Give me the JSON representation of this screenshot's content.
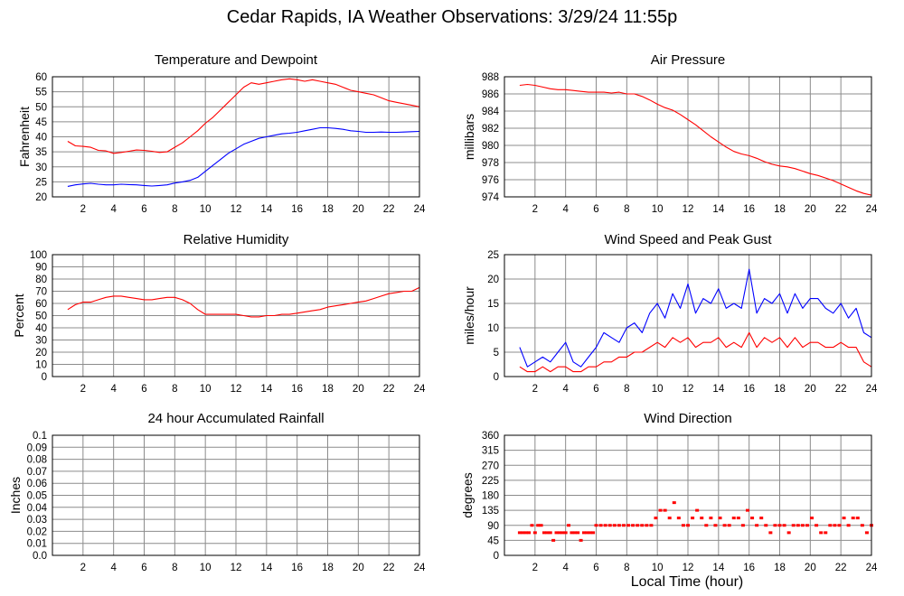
{
  "title": "Cedar Rapids, IA Weather Observations: 3/29/24 11:55p",
  "x_axis_label": "Local Time (hour)",
  "x_ticks": [
    "2",
    "4",
    "6",
    "8",
    "10",
    "12",
    "14",
    "16",
    "18",
    "20",
    "22",
    "24"
  ],
  "colors": {
    "red": "#ff0000",
    "blue": "#0000ff",
    "grid": "#8c8c8c",
    "frame": "#000000"
  },
  "chart_data": [
    {
      "id": "temp",
      "type": "line",
      "title": "Temperature and Dewpoint",
      "ylabel": "Fahrenheit",
      "xlim": [
        0,
        24
      ],
      "ylim": [
        20,
        60
      ],
      "y_ticks": [
        "20",
        "25",
        "30",
        "35",
        "40",
        "45",
        "50",
        "55",
        "60"
      ],
      "series": [
        {
          "color": "#ff0000",
          "x": [
            1.0,
            1.5,
            2.0,
            2.5,
            3.0,
            3.5,
            4.0,
            4.5,
            5.0,
            5.5,
            6.0,
            6.5,
            7.0,
            7.5,
            8.0,
            8.5,
            9.0,
            9.5,
            10.0,
            10.5,
            11.0,
            11.5,
            12.0,
            12.5,
            13.0,
            13.5,
            14.0,
            14.5,
            15.0,
            15.5,
            16.0,
            16.5,
            17.0,
            17.5,
            18.0,
            18.5,
            19.0,
            19.5,
            20.0,
            20.5,
            21.0,
            21.5,
            22.0,
            22.5,
            23.0,
            23.5,
            24.0
          ],
          "y": [
            38.5,
            37.0,
            36.8,
            36.5,
            35.5,
            35.3,
            34.5,
            34.8,
            35.2,
            35.6,
            35.5,
            35.2,
            34.8,
            35.0,
            36.5,
            38.0,
            40.0,
            42.0,
            44.5,
            46.5,
            49.0,
            51.5,
            54.0,
            56.5,
            58.0,
            57.5,
            58.0,
            58.5,
            59.0,
            59.3,
            59.0,
            58.5,
            59.0,
            58.5,
            58.0,
            57.5,
            56.5,
            55.5,
            55.0,
            54.5,
            54.0,
            53.0,
            52.0,
            51.5,
            51.0,
            50.5,
            50.0
          ]
        },
        {
          "color": "#0000ff",
          "x": [
            1.0,
            1.5,
            2.0,
            2.5,
            3.0,
            3.5,
            4.0,
            4.5,
            5.0,
            5.5,
            6.0,
            6.5,
            7.0,
            7.5,
            8.0,
            8.5,
            9.0,
            9.5,
            10.0,
            10.5,
            11.0,
            11.5,
            12.0,
            12.5,
            13.0,
            13.5,
            14.0,
            14.5,
            15.0,
            15.5,
            16.0,
            16.5,
            17.0,
            17.5,
            18.0,
            18.5,
            19.0,
            19.5,
            20.0,
            20.5,
            21.0,
            21.5,
            22.0,
            22.5,
            23.0,
            23.5,
            24.0
          ],
          "y": [
            23.5,
            24.0,
            24.3,
            24.5,
            24.2,
            24.0,
            24.0,
            24.2,
            24.1,
            24.0,
            23.8,
            23.6,
            23.8,
            24.0,
            24.6,
            25.0,
            25.5,
            26.5,
            28.5,
            30.5,
            32.5,
            34.5,
            36.0,
            37.5,
            38.5,
            39.5,
            40.0,
            40.5,
            41.0,
            41.2,
            41.5,
            42.0,
            42.5,
            43.0,
            43.0,
            42.8,
            42.5,
            42.0,
            41.8,
            41.5,
            41.5,
            41.6,
            41.5,
            41.5,
            41.6,
            41.7,
            41.8
          ]
        }
      ]
    },
    {
      "id": "pressure",
      "type": "line",
      "title": "Air Pressure",
      "ylabel": "millibars",
      "xlim": [
        0,
        24
      ],
      "ylim": [
        974,
        988
      ],
      "y_ticks": [
        "974",
        "976",
        "978",
        "980",
        "982",
        "984",
        "986",
        "988"
      ],
      "series": [
        {
          "color": "#ff0000",
          "x": [
            1.0,
            1.5,
            2.0,
            2.5,
            3.0,
            3.5,
            4.0,
            4.5,
            5.0,
            5.5,
            6.0,
            6.5,
            7.0,
            7.5,
            8.0,
            8.5,
            9.0,
            9.5,
            10.0,
            10.5,
            11.0,
            11.5,
            12.0,
            12.5,
            13.0,
            13.5,
            14.0,
            14.5,
            15.0,
            15.5,
            16.0,
            16.5,
            17.0,
            17.5,
            18.0,
            18.5,
            19.0,
            19.5,
            20.0,
            20.5,
            21.0,
            21.5,
            22.0,
            22.5,
            23.0,
            23.5,
            24.0
          ],
          "y": [
            987.0,
            987.1,
            987.0,
            986.8,
            986.6,
            986.5,
            986.5,
            986.4,
            986.3,
            986.2,
            986.2,
            986.2,
            986.1,
            986.2,
            986.0,
            986.0,
            985.7,
            985.3,
            984.8,
            984.4,
            984.1,
            983.6,
            983.0,
            982.4,
            981.7,
            981.0,
            980.4,
            979.8,
            979.3,
            979.0,
            978.8,
            978.5,
            978.1,
            977.8,
            977.6,
            977.5,
            977.3,
            977.0,
            976.7,
            976.5,
            976.2,
            975.9,
            975.5,
            975.1,
            974.7,
            974.4,
            974.2
          ]
        }
      ]
    },
    {
      "id": "humidity",
      "type": "line",
      "title": "Relative Humidity",
      "ylabel": "Percent",
      "xlim": [
        0,
        24
      ],
      "ylim": [
        0,
        100
      ],
      "y_ticks": [
        "0",
        "10",
        "20",
        "30",
        "40",
        "50",
        "60",
        "70",
        "80",
        "90",
        "100"
      ],
      "series": [
        {
          "color": "#ff0000",
          "x": [
            1.0,
            1.5,
            2.0,
            2.5,
            3.0,
            3.5,
            4.0,
            4.5,
            5.0,
            5.5,
            6.0,
            6.5,
            7.0,
            7.5,
            8.0,
            8.5,
            9.0,
            9.5,
            10.0,
            10.5,
            11.0,
            11.5,
            12.0,
            12.5,
            13.0,
            13.5,
            14.0,
            14.5,
            15.0,
            15.5,
            16.0,
            16.5,
            17.0,
            17.5,
            18.0,
            18.5,
            19.0,
            19.5,
            20.0,
            20.5,
            21.0,
            21.5,
            22.0,
            22.5,
            23.0,
            23.5,
            24.0
          ],
          "y": [
            55,
            59,
            61,
            61,
            63,
            65,
            66,
            66,
            65,
            64,
            63,
            63,
            64,
            65,
            65,
            63,
            60,
            55,
            51,
            51,
            51,
            51,
            51,
            50,
            49,
            49,
            50,
            50,
            51,
            51,
            52,
            53,
            54,
            55,
            57,
            58,
            59,
            60,
            61,
            62,
            64,
            66,
            68,
            69,
            70,
            70,
            73
          ]
        }
      ]
    },
    {
      "id": "wind",
      "type": "line",
      "title": "Wind Speed and Peak Gust",
      "ylabel": "miles/hour",
      "xlim": [
        0,
        24
      ],
      "ylim": [
        0,
        25
      ],
      "y_ticks": [
        "0",
        "5",
        "10",
        "15",
        "20",
        "25"
      ],
      "series": [
        {
          "color": "#0000ff",
          "x": [
            1.0,
            1.5,
            2.0,
            2.5,
            3.0,
            3.5,
            4.0,
            4.5,
            5.0,
            5.5,
            6.0,
            6.5,
            7.0,
            7.5,
            8.0,
            8.5,
            9.0,
            9.5,
            10.0,
            10.5,
            11.0,
            11.5,
            12.0,
            12.5,
            13.0,
            13.5,
            14.0,
            14.5,
            15.0,
            15.5,
            16.0,
            16.5,
            17.0,
            17.5,
            18.0,
            18.5,
            19.0,
            19.5,
            20.0,
            20.5,
            21.0,
            21.5,
            22.0,
            22.5,
            23.0,
            23.5,
            24.0
          ],
          "y": [
            6,
            2,
            3,
            4,
            3,
            5,
            7,
            3,
            2,
            4,
            6,
            9,
            8,
            7,
            10,
            11,
            9,
            13,
            15,
            12,
            17,
            14,
            19,
            13,
            16,
            15,
            18,
            14,
            15,
            14,
            22,
            13,
            16,
            15,
            17,
            13,
            17,
            14,
            16,
            16,
            14,
            13,
            15,
            12,
            14,
            9,
            8
          ]
        },
        {
          "color": "#ff0000",
          "x": [
            1.0,
            1.5,
            2.0,
            2.5,
            3.0,
            3.5,
            4.0,
            4.5,
            5.0,
            5.5,
            6.0,
            6.5,
            7.0,
            7.5,
            8.0,
            8.5,
            9.0,
            9.5,
            10.0,
            10.5,
            11.0,
            11.5,
            12.0,
            12.5,
            13.0,
            13.5,
            14.0,
            14.5,
            15.0,
            15.5,
            16.0,
            16.5,
            17.0,
            17.5,
            18.0,
            18.5,
            19.0,
            19.5,
            20.0,
            20.5,
            21.0,
            21.5,
            22.0,
            22.5,
            23.0,
            23.5,
            24.0
          ],
          "y": [
            2,
            1,
            1,
            2,
            1,
            2,
            2,
            1,
            1,
            2,
            2,
            3,
            3,
            4,
            4,
            5,
            5,
            6,
            7,
            6,
            8,
            7,
            8,
            6,
            7,
            7,
            8,
            6,
            7,
            6,
            9,
            6,
            8,
            7,
            8,
            6,
            8,
            6,
            7,
            7,
            6,
            6,
            7,
            6,
            6,
            3,
            2
          ]
        }
      ]
    },
    {
      "id": "rain",
      "type": "line",
      "title": "24 hour Accumulated Rainfall",
      "ylabel": "Inches",
      "xlim": [
        0,
        24
      ],
      "ylim": [
        0,
        0.1
      ],
      "y_ticks": [
        "0.0",
        "0.01",
        "0.02",
        "0.03",
        "0.04",
        "0.05",
        "0.06",
        "0.07",
        "0.08",
        "0.09",
        "0.1"
      ],
      "series": [
        {
          "color": "#ff0000",
          "x": [
            1.0,
            24.0
          ],
          "y": [
            0.0,
            0.0
          ]
        }
      ]
    },
    {
      "id": "direction",
      "type": "scatter",
      "title": "Wind Direction",
      "ylabel": "degrees",
      "xlim": [
        0,
        24
      ],
      "ylim": [
        0,
        360
      ],
      "y_ticks": [
        "0",
        "45",
        "90",
        "135",
        "180",
        "225",
        "270",
        "315",
        "360"
      ],
      "series": [
        {
          "color": "#ff0000",
          "x": [
            1.0,
            1.2,
            1.4,
            1.6,
            1.8,
            2.0,
            2.2,
            2.4,
            2.6,
            2.8,
            3.0,
            3.2,
            3.4,
            3.6,
            3.8,
            4.0,
            4.2,
            4.4,
            4.6,
            4.8,
            5.0,
            5.2,
            5.4,
            5.6,
            5.8,
            6.0,
            6.3,
            6.6,
            6.9,
            7.2,
            7.5,
            7.8,
            8.1,
            8.4,
            8.7,
            9.0,
            9.3,
            9.6,
            9.9,
            10.2,
            10.5,
            10.8,
            11.1,
            11.4,
            11.7,
            12.0,
            12.3,
            12.6,
            12.9,
            13.2,
            13.5,
            13.8,
            14.1,
            14.4,
            14.7,
            15.0,
            15.3,
            15.6,
            15.9,
            16.2,
            16.5,
            16.8,
            17.1,
            17.4,
            17.7,
            18.0,
            18.3,
            18.6,
            18.9,
            19.2,
            19.5,
            19.8,
            20.1,
            20.4,
            20.7,
            21.0,
            21.3,
            21.6,
            21.9,
            22.2,
            22.5,
            22.8,
            23.1,
            23.4,
            23.7,
            24.0
          ],
          "y": [
            68,
            68,
            68,
            68,
            90,
            68,
            90,
            90,
            68,
            68,
            68,
            45,
            68,
            68,
            68,
            68,
            90,
            68,
            68,
            68,
            45,
            68,
            68,
            68,
            68,
            90,
            90,
            90,
            90,
            90,
            90,
            90,
            90,
            90,
            90,
            90,
            90,
            90,
            112,
            135,
            135,
            112,
            158,
            112,
            90,
            90,
            112,
            135,
            112,
            90,
            112,
            90,
            112,
            90,
            90,
            112,
            112,
            90,
            135,
            112,
            90,
            112,
            90,
            68,
            90,
            90,
            90,
            68,
            90,
            90,
            90,
            90,
            112,
            90,
            68,
            68,
            90,
            90,
            90,
            112,
            90,
            112,
            112,
            90,
            68,
            90
          ]
        }
      ]
    }
  ]
}
